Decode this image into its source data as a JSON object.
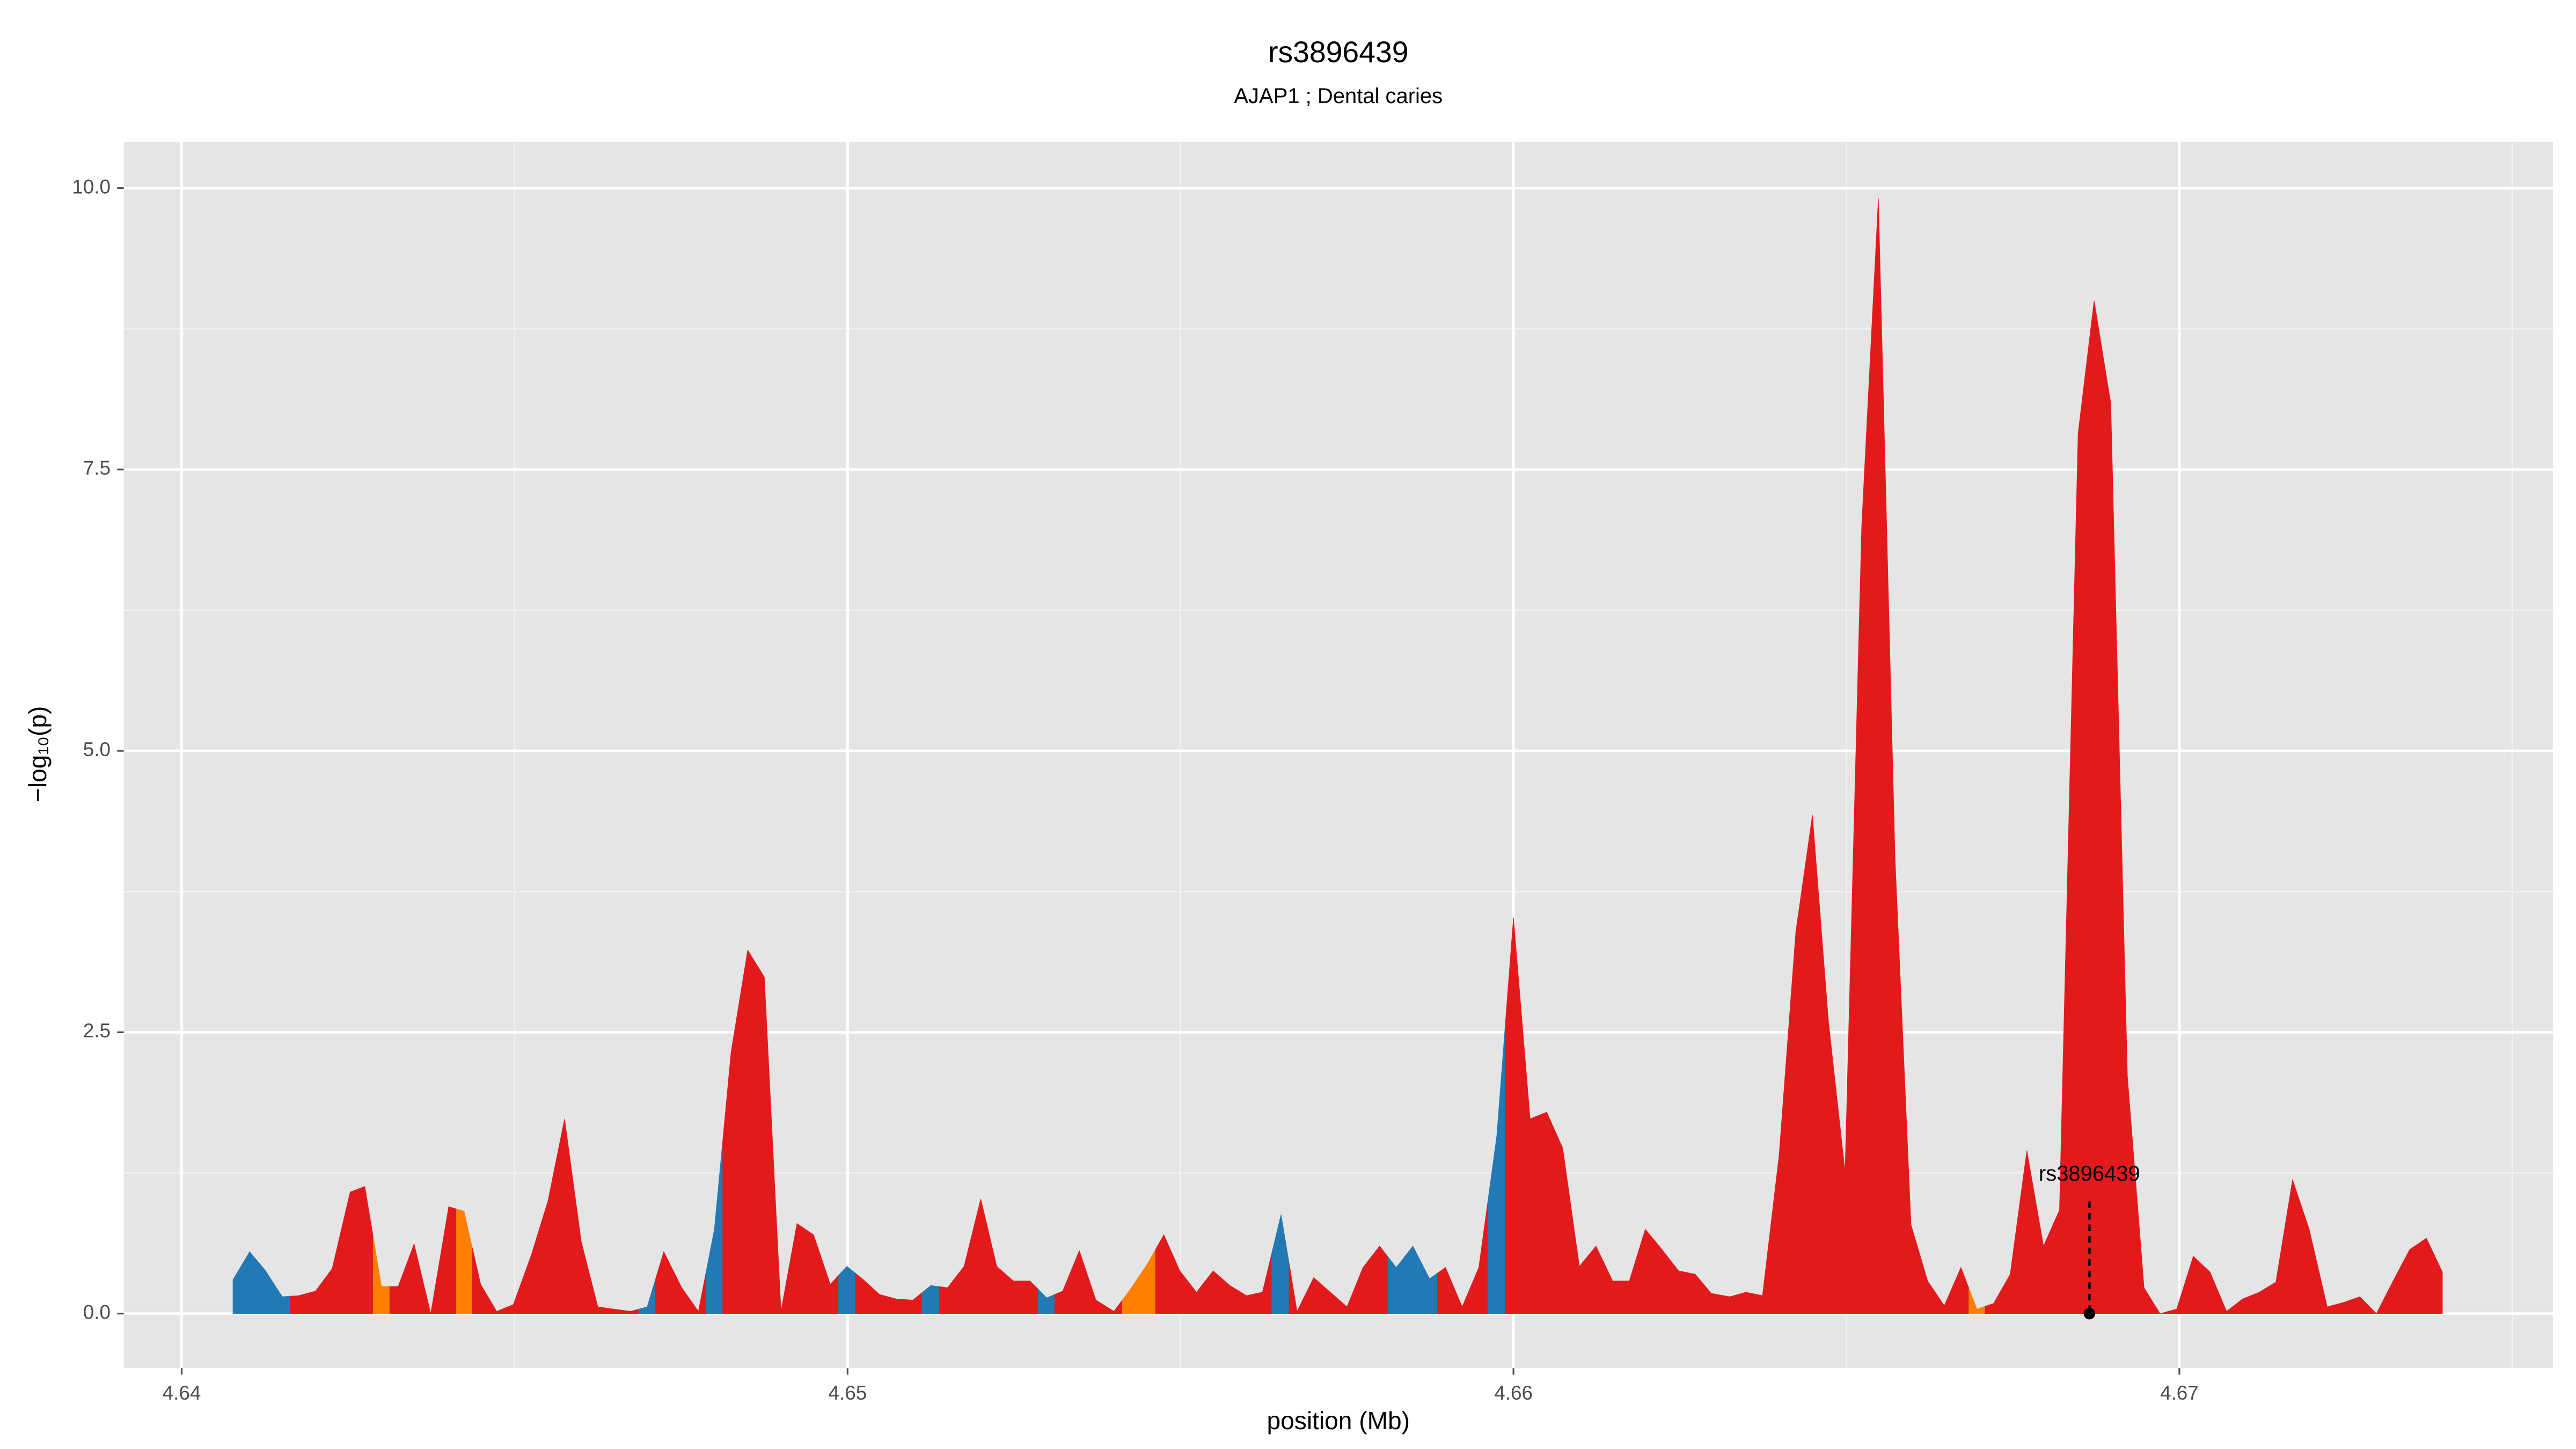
{
  "chart_data": {
    "type": "area",
    "title": "rs3896439",
    "subtitle": "AJAP1 ; Dental caries",
    "x_label": "position (Mb)",
    "y_label": "−log₁₀(p)",
    "x": [
      4.64077,
      4.64102,
      4.64126,
      4.64151,
      4.64176,
      4.64201,
      4.64226,
      4.64253,
      4.64275,
      4.643,
      4.64325,
      4.64349,
      4.64374,
      4.64401,
      4.64424,
      4.64449,
      4.64473,
      4.64498,
      4.64525,
      4.6455,
      4.64575,
      4.646,
      4.64625,
      4.64649,
      4.64674,
      4.64699,
      4.64724,
      4.64751,
      4.64776,
      4.648,
      4.64825,
      4.6485,
      4.64875,
      4.649,
      4.64924,
      4.64949,
      4.64974,
      4.64999,
      4.65024,
      4.65048,
      4.65073,
      4.65098,
      4.65125,
      4.6515,
      4.65175,
      4.652,
      4.65224,
      4.65249,
      4.65274,
      4.65299,
      4.65323,
      4.65348,
      4.65373,
      4.654,
      4.65425,
      4.6545,
      4.65475,
      4.65499,
      4.65524,
      4.65549,
      4.65574,
      4.65599,
      4.65623,
      4.65651,
      4.65675,
      4.657,
      4.65725,
      4.6575,
      4.65774,
      4.65799,
      4.65824,
      4.65849,
      4.65874,
      4.65898,
      4.65923,
      4.65948,
      4.65975,
      4.66,
      4.66025,
      4.6605,
      4.66074,
      4.66099,
      4.66124,
      4.66149,
      4.66174,
      4.66198,
      4.66223,
      4.66248,
      4.66273,
      4.66297,
      4.66325,
      4.66349,
      4.66374,
      4.66399,
      4.66424,
      4.66449,
      4.66473,
      4.66498,
      4.66523,
      4.66548,
      4.66573,
      4.66597,
      4.66622,
      4.66647,
      4.66672,
      4.66696,
      4.66721,
      4.66746,
      4.66771,
      4.66796,
      4.6682,
      4.66848,
      4.66872,
      4.66897,
      4.66922,
      4.66947,
      4.66971,
      4.66996,
      4.67021,
      4.67046,
      4.67071,
      4.67095,
      4.6712,
      4.67145,
      4.6717,
      4.67195,
      4.67222,
      4.67247,
      4.67271,
      4.67296,
      4.67321,
      4.67346,
      4.67371,
      4.67395
    ],
    "values": [
      0.3,
      0.55,
      0.38,
      0.15,
      0.16,
      0.2,
      0.4,
      1.08,
      1.13,
      0.24,
      0.24,
      0.62,
      0,
      0.95,
      0.91,
      0.26,
      0.02,
      0.08,
      0.52,
      1.0,
      1.73,
      0.64,
      0.06,
      0.04,
      0.02,
      0.06,
      0.55,
      0.23,
      0.02,
      0.75,
      2.32,
      3.23,
      2.99,
      0.02,
      0.8,
      0.7,
      0.26,
      0.42,
      0.3,
      0.17,
      0.13,
      0.12,
      0.25,
      0.23,
      0.42,
      1.02,
      0.42,
      0.29,
      0.29,
      0.14,
      0.2,
      0.56,
      0.12,
      0.02,
      0.22,
      0.44,
      0.7,
      0.38,
      0.19,
      0.38,
      0.25,
      0.16,
      0.19,
      0.88,
      0.02,
      0.32,
      0.19,
      0.06,
      0.41,
      0.6,
      0.41,
      0.6,
      0.31,
      0.41,
      0.06,
      0.41,
      1.58,
      3.52,
      1.73,
      1.79,
      1.47,
      0.42,
      0.6,
      0.29,
      0.29,
      0.75,
      0.57,
      0.38,
      0.35,
      0.18,
      0.15,
      0.19,
      0.16,
      1.41,
      3.39,
      4.43,
      2.6,
      1.26,
      7.0,
      9.91,
      4.05,
      0.79,
      0.29,
      0.07,
      0.41,
      0.04,
      0.09,
      0.35,
      1.45,
      0.6,
      0.92,
      7.82,
      9.0,
      8.09,
      2.11,
      0.23,
      0.0,
      0.04,
      0.51,
      0.37,
      0.02,
      0.13,
      0.19,
      0.28,
      1.19,
      0.75,
      0.06,
      0.1,
      0.15,
      0.0,
      0.29,
      0.57,
      0.67,
      0.37
    ],
    "colors": [
      "#2379b3",
      "#2379b3",
      "#2379b3",
      "#2379b3",
      "#e31a1c",
      "#e31a1c",
      "#e31a1c",
      "#e31a1c",
      "#e31a1c",
      "#ff7f00",
      "#e31a1c",
      "#e31a1c",
      "#e31a1c",
      "#e31a1c",
      "#ff7f00",
      "#e31a1c",
      "#e31a1c",
      "#e31a1c",
      "#e31a1c",
      "#e31a1c",
      "#e31a1c",
      "#e31a1c",
      "#e31a1c",
      "#e31a1c",
      "#e31a1c",
      "#2379b3",
      "#e31a1c",
      "#e31a1c",
      "#e31a1c",
      "#2379b3",
      "#e31a1c",
      "#e31a1c",
      "#e31a1c",
      "#e31a1c",
      "#e31a1c",
      "#e31a1c",
      "#e31a1c",
      "#2379b3",
      "#e31a1c",
      "#e31a1c",
      "#e31a1c",
      "#e31a1c",
      "#2379b3",
      "#e31a1c",
      "#e31a1c",
      "#e31a1c",
      "#e31a1c",
      "#e31a1c",
      "#e31a1c",
      "#2379b3",
      "#e31a1c",
      "#e31a1c",
      "#e31a1c",
      "#e31a1c",
      "#ff7f00",
      "#ff7f00",
      "#e31a1c",
      "#e31a1c",
      "#e31a1c",
      "#e31a1c",
      "#e31a1c",
      "#e31a1c",
      "#e31a1c",
      "#2379b3",
      "#e31a1c",
      "#e31a1c",
      "#e31a1c",
      "#e31a1c",
      "#e31a1c",
      "#e31a1c",
      "#2379b3",
      "#2379b3",
      "#2379b3",
      "#e31a1c",
      "#e31a1c",
      "#e31a1c",
      "#2379b3",
      "#e31a1c",
      "#e31a1c",
      "#e31a1c",
      "#e31a1c",
      "#e31a1c",
      "#e31a1c",
      "#e31a1c",
      "#e31a1c",
      "#e31a1c",
      "#e31a1c",
      "#e31a1c",
      "#e31a1c",
      "#e31a1c",
      "#e31a1c",
      "#e31a1c",
      "#e31a1c",
      "#e31a1c",
      "#e31a1c",
      "#e31a1c",
      "#e31a1c",
      "#e31a1c",
      "#e31a1c",
      "#e31a1c",
      "#e31a1c",
      "#e31a1c",
      "#e31a1c",
      "#e31a1c",
      "#e31a1c",
      "#ff7f00",
      "#e31a1c",
      "#e31a1c",
      "#e31a1c",
      "#e31a1c",
      "#e31a1c",
      "#e31a1c",
      "#e31a1c",
      "#e31a1c",
      "#e31a1c",
      "#e31a1c",
      "#e31a1c",
      "#e31a1c",
      "#e31a1c",
      "#e31a1c",
      "#e31a1c",
      "#e31a1c",
      "#e31a1c",
      "#e31a1c",
      "#e31a1c",
      "#e31a1c",
      "#e31a1c",
      "#e31a1c",
      "#e31a1c",
      "#e31a1c",
      "#e31a1c",
      "#e31a1c",
      "#e31a1c",
      "#e31a1c"
    ],
    "annotation": {
      "label": "rs3896439",
      "x": 4.66865,
      "y": 0
    },
    "xlim": [
      4.63913,
      4.67561
    ],
    "ylim": [
      -0.484,
      10.41
    ],
    "xticks": [
      4.64,
      4.65,
      4.66,
      4.67
    ],
    "yticks": [
      {
        "value": 0,
        "label": "0.0"
      },
      2.5,
      {
        "value": 5,
        "label": "5.0"
      },
      7.5,
      {
        "value": 10,
        "label": "10.0"
      }
    ],
    "grid": true
  }
}
